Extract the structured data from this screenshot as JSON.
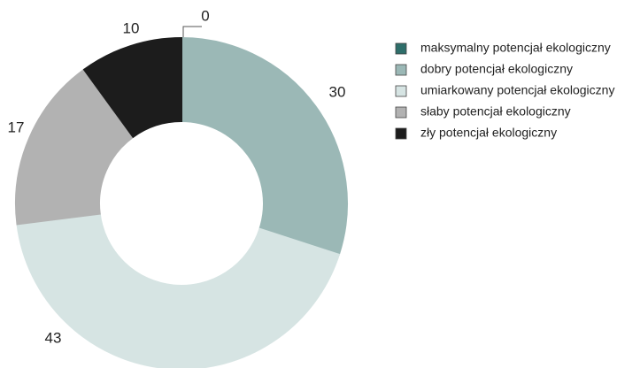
{
  "chart_data": {
    "type": "donut",
    "categories": [
      "maksymalny potencjał ekologiczny",
      "dobry potencjał ekologiczny",
      "umiarkowany potencjał ekologiczny",
      "słaby potencjał ekologiczny",
      "zły potencjał ekologiczny"
    ],
    "values": [
      0,
      30,
      43,
      17,
      10
    ],
    "colors": [
      "#2e6e6a",
      "#9bb8b6",
      "#d6e4e3",
      "#b2b2b2",
      "#1c1c1c"
    ],
    "legend": "right"
  }
}
